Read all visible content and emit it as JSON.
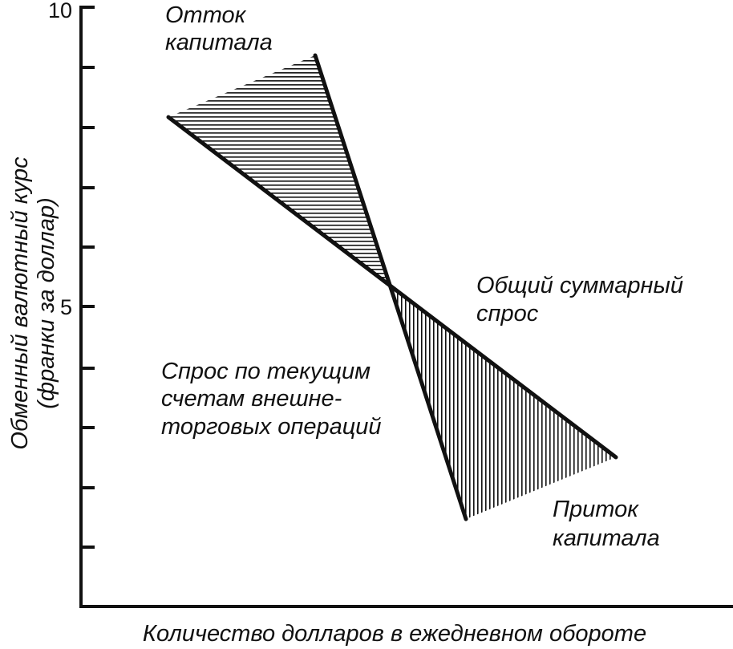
{
  "diagram": {
    "axes": {
      "y_label_line1": "Обменный валютный курс",
      "y_label_line2": "(франки за доллар)",
      "x_label": "Количество долларов в ежедневном обороте",
      "y_tick_labels": {
        "top": "10",
        "mid": "5"
      }
    },
    "labels": {
      "outflow_line1": "Отток",
      "outflow_line2": "капитала",
      "total_demand_line1": "Общий суммарный",
      "total_demand_line2": "спрос",
      "current_account_line1": "Спрос по текущим",
      "current_account_line2": "счетам внешне-",
      "current_account_line3": "торговых операций",
      "inflow_line1": "Приток",
      "inflow_line2": "капитала"
    },
    "colors": {
      "ink": "#111111",
      "background": "#ffffff"
    }
  }
}
